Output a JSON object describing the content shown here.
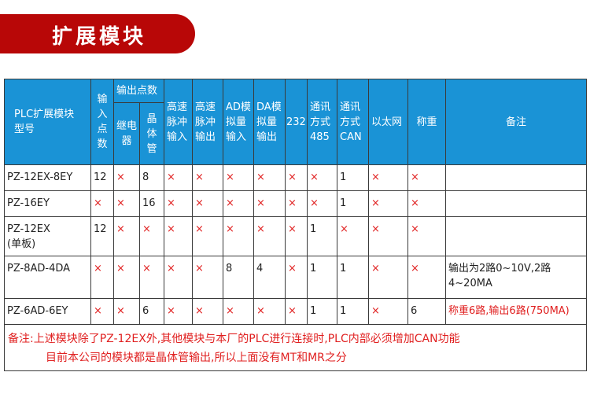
{
  "banner": {
    "title": "扩展模块",
    "color": "#b80707"
  },
  "table": {
    "header_color": "#1a93d6",
    "cross_color": "#e02020",
    "headers": {
      "model": "PLC扩展模块型号",
      "inputs": "输入点数",
      "outputs": "输出点数",
      "relay": "继电器",
      "transistor": "晶体管",
      "hs_in": "高速脉冲输入",
      "hs_out": "高速脉冲输出",
      "ad": "AD模拟量输入",
      "da": "DA模拟量输出",
      "rs232": "232",
      "rs485": "通讯方式485",
      "can": "通讯方式CAN",
      "ethernet": "以太网",
      "weighing": "称重",
      "remarks": "备注"
    },
    "rows": [
      {
        "cells": [
          "PZ-12EX-8EY",
          "12",
          "×",
          "8",
          "×",
          "×",
          "×",
          "×",
          "×",
          "×",
          "1",
          "×",
          "×",
          ""
        ],
        "remark_red": false
      },
      {
        "cells": [
          "PZ-16EY",
          "×",
          "×",
          "16",
          "×",
          "×",
          "×",
          "×",
          "×",
          "×",
          "1",
          "×",
          "×",
          ""
        ],
        "remark_red": false
      },
      {
        "cells": [
          "PZ-12EX\n(单板)",
          "12",
          "×",
          "×",
          "×",
          "×",
          "×",
          "×",
          "×",
          "1",
          "×",
          "×",
          "×",
          ""
        ],
        "remark_red": false
      },
      {
        "cells": [
          "PZ-8AD-4DA",
          "×",
          "×",
          "×",
          "×",
          "×",
          "8",
          "4",
          "×",
          "1",
          "1",
          "×",
          "×",
          "输出为2路0~10V,2路4~20MA"
        ],
        "remark_red": false
      },
      {
        "cells": [
          "PZ-6AD-6EY",
          "×",
          "×",
          "6",
          "×",
          "×",
          "×",
          "×",
          "×",
          "1",
          "1",
          "×",
          "6",
          "称重6路,输出6路(750MA)"
        ],
        "remark_red": true
      }
    ],
    "note_lines": [
      "备注:上述模块除了PZ-12EX外,其他模块与本厂的PLC进行连接时,PLC内部必须增加CAN功能",
      "目前本公司的模块都是晶体管输出,所以上面没有MT和MR之分"
    ]
  }
}
